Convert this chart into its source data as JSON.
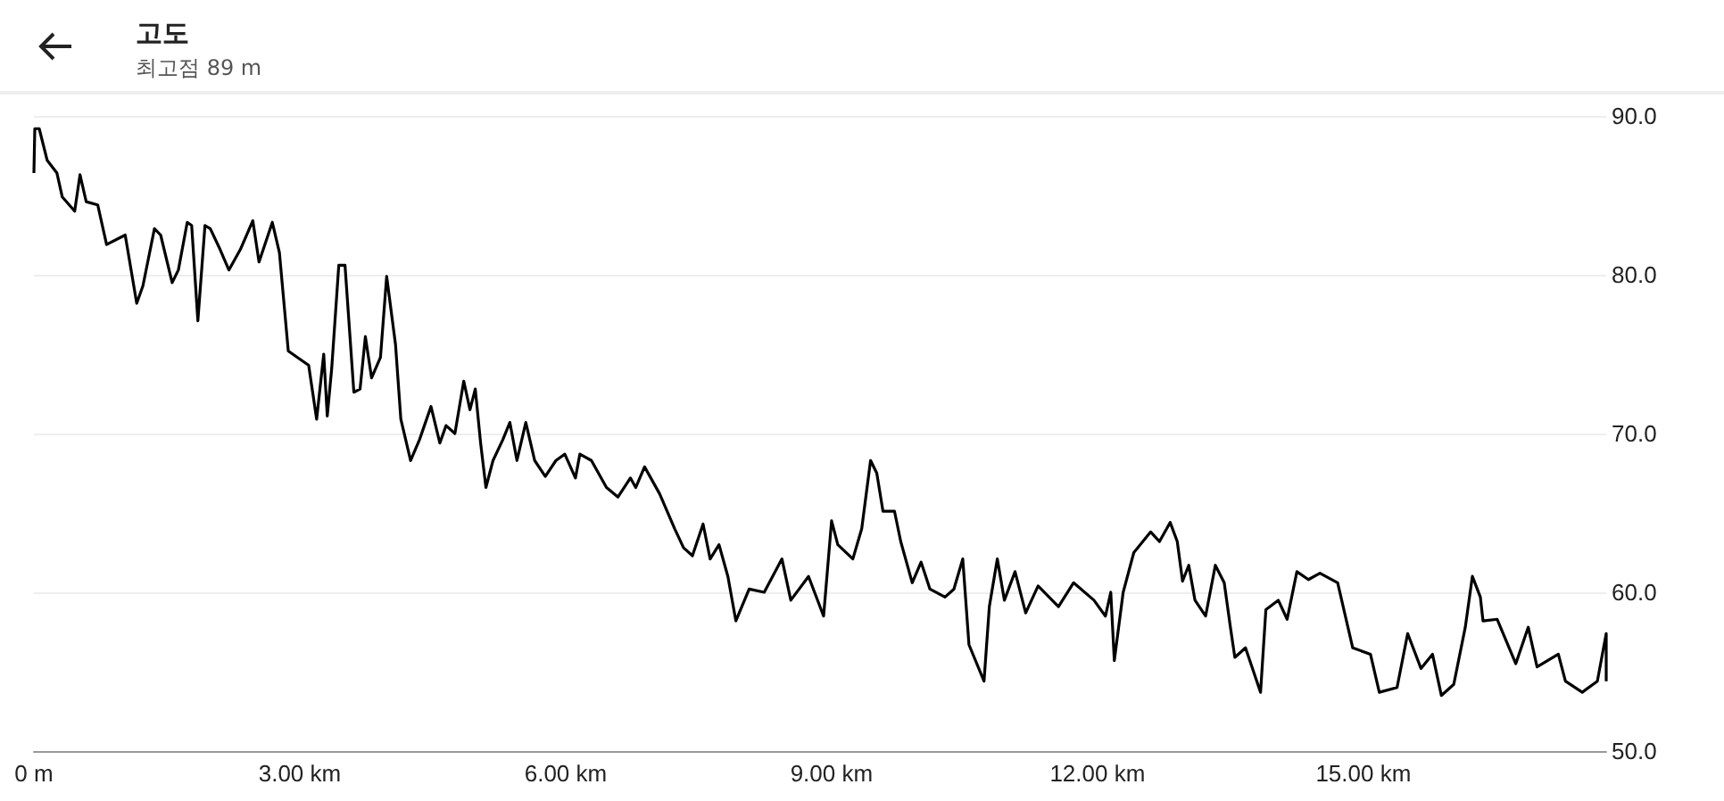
{
  "chart_data": {
    "type": "line",
    "title": "고도",
    "subtitle": "최고점 89 m",
    "x": [
      0,
      0.01,
      0.06,
      0.15,
      0.26,
      0.32,
      0.46,
      0.52,
      0.59,
      0.72,
      0.82,
      1.03,
      1.16,
      1.23,
      1.36,
      1.43,
      1.56,
      1.63,
      1.73,
      1.78,
      1.85,
      1.93,
      1.99,
      2.1,
      2.2,
      2.33,
      2.47,
      2.54,
      2.69,
      2.77,
      2.87,
      2.97,
      3.1,
      3.19,
      3.27,
      3.31,
      3.36,
      3.44,
      3.51,
      3.61,
      3.68,
      3.74,
      3.81,
      3.91,
      3.98,
      4.08,
      4.14,
      4.25,
      4.35,
      4.48,
      4.58,
      4.65,
      4.75,
      4.85,
      4.92,
      4.98,
      5.04,
      5.1,
      5.18,
      5.29,
      5.37,
      5.45,
      5.55,
      5.65,
      5.77,
      5.89,
      5.99,
      6.11,
      6.16,
      6.29,
      6.46,
      6.59,
      6.73,
      6.79,
      6.89,
      7.06,
      7.23,
      7.33,
      7.43,
      7.55,
      7.63,
      7.73,
      7.83,
      7.92,
      8.07,
      8.24,
      8.44,
      8.54,
      8.74,
      8.91,
      9.0,
      9.07,
      9.24,
      9.34,
      9.44,
      9.51,
      9.58,
      9.71,
      9.78,
      9.91,
      10.01,
      10.11,
      10.28,
      10.38,
      10.48,
      10.55,
      10.72,
      10.78,
      10.87,
      10.95,
      11.07,
      11.19,
      11.33,
      11.56,
      11.73,
      11.96,
      12.09,
      12.15,
      12.19,
      12.29,
      12.41,
      12.6,
      12.7,
      12.82,
      12.9,
      12.96,
      13.03,
      13.1,
      13.22,
      13.33,
      13.43,
      13.5,
      13.55,
      13.67,
      13.84,
      13.9,
      14.04,
      14.14,
      14.25,
      14.38,
      14.51,
      14.71,
      14.88,
      15.08,
      15.18,
      15.38,
      15.5,
      15.65,
      15.78,
      15.88,
      16.02,
      16.15,
      16.23,
      16.32,
      16.35,
      16.51,
      16.72,
      16.86,
      16.96,
      17.2,
      17.28,
      17.47,
      17.64,
      17.74,
      17.74
    ],
    "series": [
      {
        "color": "#000000",
        "values": [
          86.4,
          89.2,
          89.2,
          87.2,
          86.4,
          84.9,
          84.0,
          86.3,
          84.6,
          84.4,
          81.9,
          82.5,
          78.2,
          79.3,
          82.9,
          82.5,
          79.5,
          80.3,
          83.3,
          83.1,
          77.1,
          83.1,
          82.9,
          81.6,
          80.3,
          81.6,
          83.4,
          80.8,
          83.3,
          81.4,
          75.2,
          74.8,
          74.3,
          70.9,
          75.0,
          71.1,
          74.1,
          80.6,
          80.6,
          72.6,
          72.8,
          76.1,
          73.5,
          74.8,
          79.9,
          75.6,
          70.9,
          68.3,
          69.6,
          71.7,
          69.4,
          70.5,
          70.0,
          73.3,
          71.5,
          72.8,
          69.4,
          66.6,
          68.3,
          69.6,
          70.7,
          68.3,
          70.7,
          68.3,
          67.3,
          68.3,
          68.7,
          67.2,
          68.7,
          68.3,
          66.6,
          66.0,
          67.2,
          66.6,
          67.9,
          66.2,
          64.0,
          62.8,
          62.3,
          64.3,
          62.1,
          63.0,
          61.0,
          58.2,
          60.2,
          60.0,
          62.1,
          59.5,
          61.0,
          58.5,
          64.5,
          63.0,
          62.1,
          64.0,
          68.3,
          67.5,
          65.1,
          65.1,
          63.2,
          60.6,
          61.9,
          60.2,
          59.7,
          60.2,
          62.1,
          56.7,
          54.4,
          59.1,
          62.1,
          59.5,
          61.3,
          58.7,
          60.4,
          59.1,
          60.6,
          59.5,
          58.5,
          60.0,
          55.7,
          60.0,
          62.5,
          63.8,
          63.2,
          64.4,
          63.2,
          60.7,
          61.7,
          59.5,
          58.5,
          61.7,
          60.6,
          57.8,
          55.9,
          56.5,
          53.7,
          58.9,
          59.5,
          58.3,
          61.3,
          60.8,
          61.2,
          60.6,
          56.5,
          56.1,
          53.7,
          54.0,
          57.4,
          55.2,
          56.1,
          53.5,
          54.2,
          57.8,
          61.0,
          59.7,
          58.2,
          58.3,
          55.5,
          57.8,
          55.3,
          56.1,
          54.4,
          53.7,
          54.4,
          57.4,
          54.4
        ]
      }
    ],
    "xlim": [
      0,
      17.74
    ],
    "xticks": [
      {
        "value": 0,
        "label": "0 m"
      },
      {
        "value": 3,
        "label": "3.00 km"
      },
      {
        "value": 6,
        "label": "6.00 km"
      },
      {
        "value": 9,
        "label": "9.00 km"
      },
      {
        "value": 12,
        "label": "12.00 km"
      },
      {
        "value": 15,
        "label": "15.00 km"
      }
    ],
    "ylim": [
      50,
      90
    ],
    "yticks": [
      {
        "value": 50,
        "label": "50.0"
      },
      {
        "value": 60,
        "label": "60.0"
      },
      {
        "value": 70,
        "label": "70.0"
      },
      {
        "value": 80,
        "label": "80.0"
      },
      {
        "value": 90,
        "label": "90.0"
      }
    ],
    "grid": "y",
    "marker": "none",
    "line_style": "solid"
  }
}
